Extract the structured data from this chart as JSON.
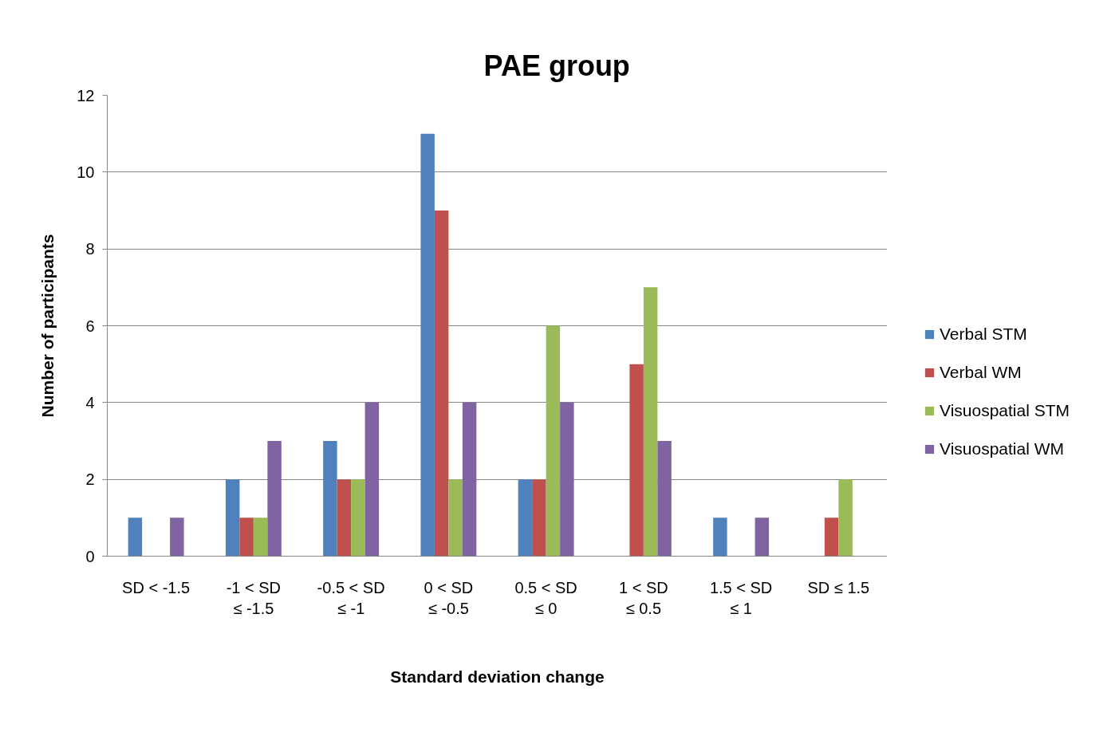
{
  "chart_data": {
    "type": "bar",
    "title": "PAE group",
    "xlabel": "Standard deviation change",
    "ylabel": "Number of participants",
    "categories": [
      "SD < -1.5",
      "-1 < SD\n≤ -1.5",
      "-0.5 < SD\n≤ -1",
      "0 < SD\n≤ -0.5",
      "0.5 < SD\n≤ 0",
      "1 < SD\n≤ 0.5",
      "1.5 < SD\n≤ 1",
      "SD ≤ 1.5"
    ],
    "series": [
      {
        "name": "Verbal STM",
        "color": "#4f81bd",
        "values": [
          1,
          2,
          3,
          11,
          2,
          0,
          1,
          0
        ]
      },
      {
        "name": "Verbal WM",
        "color": "#c0504d",
        "values": [
          0,
          1,
          2,
          9,
          2,
          5,
          0,
          1
        ]
      },
      {
        "name": "Visuospatial STM",
        "color": "#9bbb59",
        "values": [
          0,
          1,
          2,
          2,
          6,
          7,
          0,
          2
        ]
      },
      {
        "name": "Visuospatial WM",
        "color": "#8064a2",
        "values": [
          1,
          3,
          4,
          4,
          4,
          3,
          1,
          0
        ]
      }
    ],
    "ylim": [
      0,
      12
    ],
    "yticks": [
      0,
      2,
      4,
      6,
      8,
      10,
      12
    ],
    "grid": "y",
    "legend": "right"
  }
}
